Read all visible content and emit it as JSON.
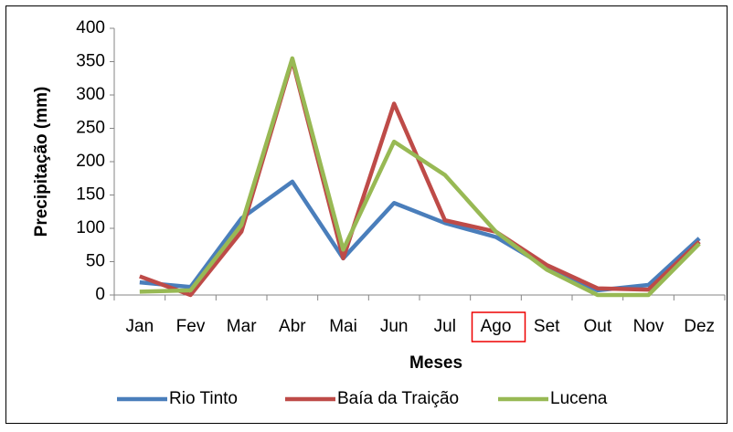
{
  "chart_data": {
    "type": "line",
    "x_label": "Meses",
    "y_label": "Precipitação (mm)",
    "categories": [
      "Jan",
      "Fev",
      "Mar",
      "Abr",
      "Mai",
      "Jun",
      "Jul",
      "Ago",
      "Set",
      "Out",
      "Nov",
      "Dez"
    ],
    "series": [
      {
        "name": "Rio Tinto",
        "color": "#4a7ebb",
        "values": [
          19,
          12,
          115,
          170,
          55,
          138,
          108,
          87,
          42,
          7,
          15,
          85
        ]
      },
      {
        "name": "Baía da Traição",
        "color": "#be4b48",
        "values": [
          28,
          0,
          95,
          352,
          55,
          287,
          112,
          95,
          45,
          10,
          8,
          80
        ]
      },
      {
        "name": "Lucena",
        "color": "#98b954",
        "values": [
          5,
          7,
          105,
          355,
          68,
          230,
          180,
          95,
          38,
          0,
          0,
          77
        ]
      }
    ],
    "ylim": [
      0,
      400
    ],
    "yticks": [
      0,
      50,
      100,
      150,
      200,
      250,
      300,
      350,
      400
    ],
    "legend": "bottom",
    "grid": false
  }
}
